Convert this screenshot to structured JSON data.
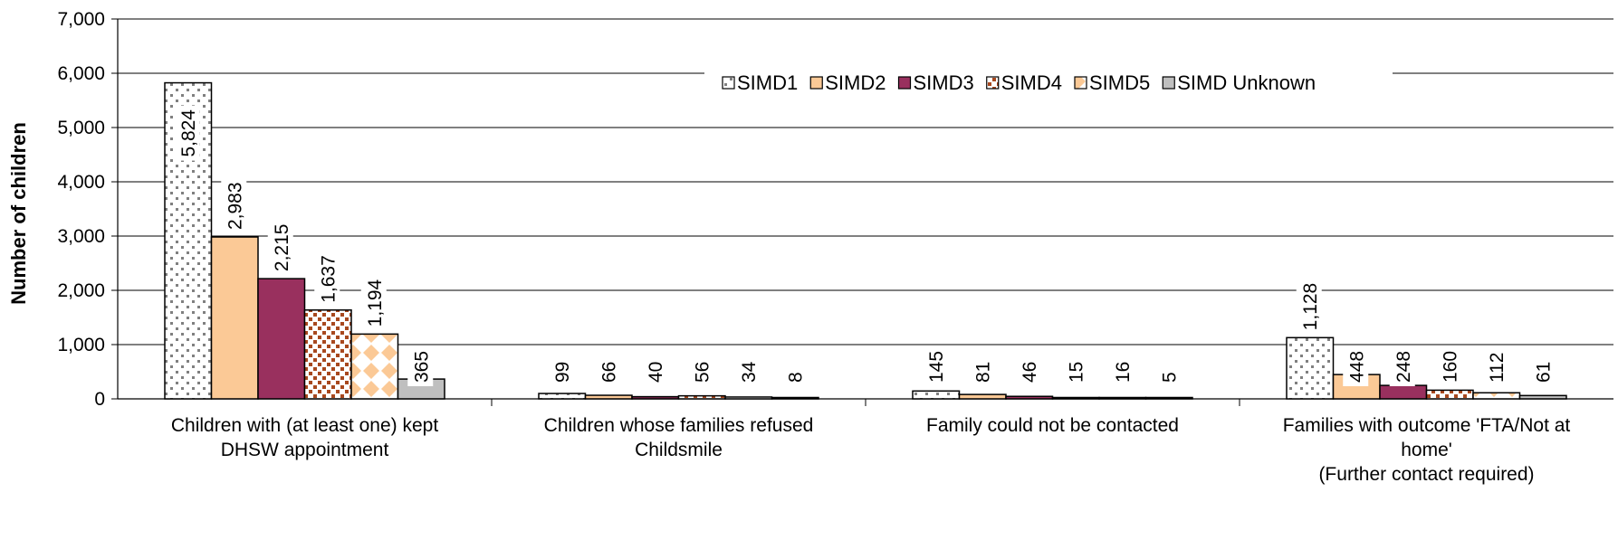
{
  "chart_data": {
    "type": "bar",
    "ylabel": "Number of children",
    "ylim": [
      0,
      7000
    ],
    "yticks": [
      0,
      1000,
      2000,
      3000,
      4000,
      5000,
      6000,
      7000
    ],
    "ytick_labels": [
      "0",
      "1,000",
      "2,000",
      "3,000",
      "4,000",
      "5,000",
      "6,000",
      "7,000"
    ],
    "grid": true,
    "legend_position": "top-right",
    "categories": [
      [
        "Children with (at least one) kept",
        "DHSW appointment"
      ],
      [
        "Children whose families refused",
        "Childsmile"
      ],
      [
        "Family could not be contacted"
      ],
      [
        "Families with outcome 'FTA/Not at",
        "home'",
        "(Further contact required)"
      ]
    ],
    "series": [
      {
        "name": "SIMD1",
        "values": [
          5824,
          99,
          145,
          1128
        ],
        "labels": [
          "5,824",
          "99",
          "145",
          "1,128"
        ],
        "color": "#ffffff",
        "pattern": "dots-grey"
      },
      {
        "name": "SIMD2",
        "values": [
          2983,
          66,
          81,
          448
        ],
        "labels": [
          "2,983",
          "66",
          "81",
          "448"
        ],
        "color": "#fbc996",
        "pattern": "solid"
      },
      {
        "name": "SIMD3",
        "values": [
          2215,
          40,
          46,
          248
        ],
        "labels": [
          "2,215",
          "40",
          "46",
          "248"
        ],
        "color": "#99305e",
        "pattern": "solid"
      },
      {
        "name": "SIMD4",
        "values": [
          1637,
          56,
          15,
          160
        ],
        "labels": [
          "1,637",
          "56",
          "15",
          "160"
        ],
        "color": "#a8481e",
        "pattern": "dots-brown"
      },
      {
        "name": "SIMD5",
        "values": [
          1194,
          34,
          16,
          112
        ],
        "labels": [
          "1,194",
          "34",
          "16",
          "112"
        ],
        "color": "#fbc996",
        "pattern": "diamonds"
      },
      {
        "name": "SIMD Unknown",
        "values": [
          365,
          8,
          5,
          61
        ],
        "labels": [
          "365",
          "8",
          "5",
          "61"
        ],
        "color": "#bfbfbf",
        "pattern": "solid"
      }
    ]
  }
}
